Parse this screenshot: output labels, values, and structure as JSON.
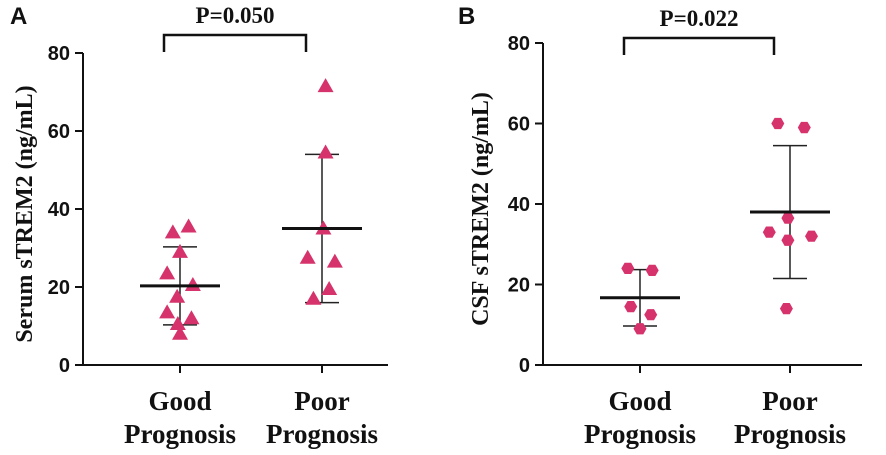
{
  "marker_color": "#d6336c",
  "chart_data": [
    {
      "type": "scatter",
      "panel_label": "A",
      "ylabel": "Serum sTREM2 (ng/mL)",
      "ylim": [
        0,
        80
      ],
      "yticks": [
        "0",
        "20",
        "40",
        "60",
        "80"
      ],
      "categories": [
        "Good Prognosis",
        "Poor Prognosis"
      ],
      "category_lines": [
        [
          "Good",
          "Prognosis"
        ],
        [
          "Poor",
          "Prognosis"
        ]
      ],
      "marker": "triangle",
      "series": [
        {
          "name": "Good Prognosis",
          "points": [
            {
              "x": -0.1,
              "y": 34
            },
            {
              "x": 0.12,
              "y": 35.5
            },
            {
              "x": 0.0,
              "y": 29
            },
            {
              "x": -0.18,
              "y": 23.5
            },
            {
              "x": 0.18,
              "y": 20.5
            },
            {
              "x": -0.04,
              "y": 17.5
            },
            {
              "x": -0.18,
              "y": 13.5
            },
            {
              "x": 0.16,
              "y": 12
            },
            {
              "x": -0.03,
              "y": 10.5
            },
            {
              "x": 0.0,
              "y": 8
            }
          ],
          "mean": 20.3,
          "sd_low": 10.3,
          "sd_high": 30.3
        },
        {
          "name": "Poor Prognosis",
          "points": [
            {
              "x": 0.05,
              "y": 71.5
            },
            {
              "x": 0.05,
              "y": 54.5
            },
            {
              "x": 0.02,
              "y": 35
            },
            {
              "x": -0.2,
              "y": 27.5
            },
            {
              "x": 0.18,
              "y": 26.5
            },
            {
              "x": 0.1,
              "y": 19.5
            },
            {
              "x": -0.12,
              "y": 17
            }
          ],
          "mean": 35,
          "sd_low": 16,
          "sd_high": 54
        }
      ],
      "significance": "P=0.050"
    },
    {
      "type": "scatter",
      "panel_label": "B",
      "ylabel": "CSF sTREM2 (ng/mL)",
      "ylim": [
        0,
        80
      ],
      "yticks": [
        "0",
        "20",
        "40",
        "60",
        "80"
      ],
      "categories": [
        "Good Prognosis",
        "Poor Prognosis"
      ],
      "category_lines": [
        [
          "Good",
          "Prognosis"
        ],
        [
          "Poor",
          "Prognosis"
        ]
      ],
      "marker": "hexagon",
      "series": [
        {
          "name": "Good Prognosis",
          "points": [
            {
              "x": -0.17,
              "y": 24
            },
            {
              "x": 0.17,
              "y": 23.5
            },
            {
              "x": -0.13,
              "y": 14.5
            },
            {
              "x": 0.15,
              "y": 12.5
            },
            {
              "x": 0.0,
              "y": 9
            }
          ],
          "mean": 16.7,
          "sd_low": 9.7,
          "sd_high": 23.7
        },
        {
          "name": "Poor Prognosis",
          "points": [
            {
              "x": -0.17,
              "y": 60
            },
            {
              "x": 0.2,
              "y": 59
            },
            {
              "x": -0.03,
              "y": 36.5
            },
            {
              "x": -0.29,
              "y": 33
            },
            {
              "x": 0.3,
              "y": 32
            },
            {
              "x": -0.03,
              "y": 31
            },
            {
              "x": -0.05,
              "y": 14
            }
          ],
          "mean": 38,
          "sd_low": 21.5,
          "sd_high": 54.5
        }
      ],
      "significance": "P=0.022"
    }
  ]
}
